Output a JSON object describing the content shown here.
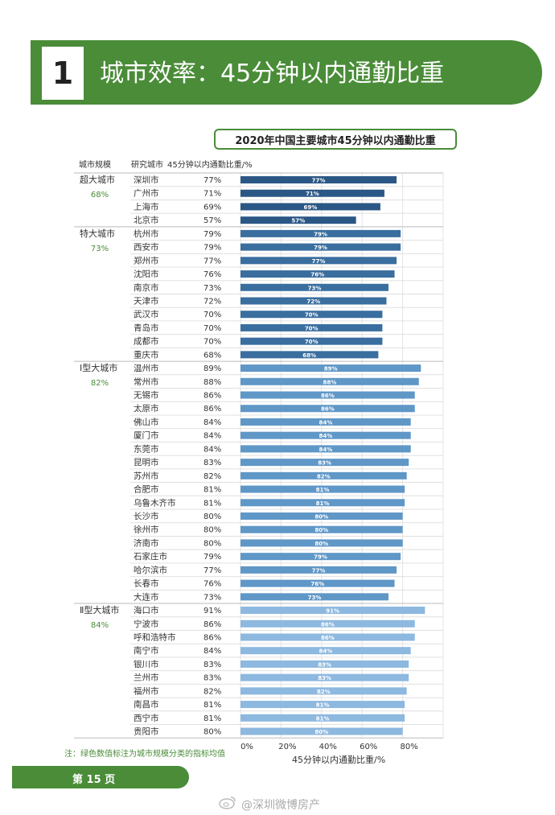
{
  "section": {
    "number": "1",
    "title": "城市效率：45分钟以内通勤比重"
  },
  "chart_data": {
    "type": "bar",
    "orientation": "horizontal",
    "title": "2020年中国主要城市45分钟以内通勤比重",
    "headers": {
      "group": "城市规模",
      "city": "研究城市",
      "value": "45分钟以内通勤比重/%"
    },
    "xlabel": "45分钟以内通勤比重/%",
    "xlim": [
      0,
      100
    ],
    "xticks": [
      "0%",
      "20%",
      "40%",
      "60%",
      "80%"
    ],
    "grid": true,
    "groups": [
      {
        "name": "超大城市",
        "avg": "68%",
        "color": "#2b5785",
        "cities": [
          {
            "city": "深圳市",
            "value": 77,
            "label": "77%"
          },
          {
            "city": "广州市",
            "value": 71,
            "label": "71%"
          },
          {
            "city": "上海市",
            "value": 69,
            "label": "69%"
          },
          {
            "city": "北京市",
            "value": 57,
            "label": "57%"
          }
        ]
      },
      {
        "name": "特大城市",
        "avg": "73%",
        "color": "#3a6e9f",
        "cities": [
          {
            "city": "杭州市",
            "value": 79,
            "label": "79%"
          },
          {
            "city": "西安市",
            "value": 79,
            "label": "79%"
          },
          {
            "city": "郑州市",
            "value": 77,
            "label": "77%"
          },
          {
            "city": "沈阳市",
            "value": 76,
            "label": "76%"
          },
          {
            "city": "南京市",
            "value": 73,
            "label": "73%"
          },
          {
            "city": "天津市",
            "value": 72,
            "label": "72%"
          },
          {
            "city": "武汉市",
            "value": 70,
            "label": "70%"
          },
          {
            "city": "青岛市",
            "value": 70,
            "label": "70%"
          },
          {
            "city": "成都市",
            "value": 70,
            "label": "70%"
          },
          {
            "city": "重庆市",
            "value": 68,
            "label": "68%"
          }
        ]
      },
      {
        "name": "Ⅰ型大城市",
        "avg": "82%",
        "color": "#5f97c7",
        "cities": [
          {
            "city": "温州市",
            "value": 89,
            "label": "89%"
          },
          {
            "city": "常州市",
            "value": 88,
            "label": "88%"
          },
          {
            "city": "无锡市",
            "value": 86,
            "label": "86%"
          },
          {
            "city": "太原市",
            "value": 86,
            "label": "86%"
          },
          {
            "city": "佛山市",
            "value": 84,
            "label": "84%"
          },
          {
            "city": "厦门市",
            "value": 84,
            "label": "84%"
          },
          {
            "city": "东莞市",
            "value": 84,
            "label": "84%"
          },
          {
            "city": "昆明市",
            "value": 83,
            "label": "83%"
          },
          {
            "city": "苏州市",
            "value": 82,
            "label": "82%"
          },
          {
            "city": "合肥市",
            "value": 81,
            "label": "81%"
          },
          {
            "city": "乌鲁木齐市",
            "value": 81,
            "label": "81%"
          },
          {
            "city": "长沙市",
            "value": 80,
            "label": "80%"
          },
          {
            "city": "徐州市",
            "value": 80,
            "label": "80%"
          },
          {
            "city": "济南市",
            "value": 80,
            "label": "80%"
          },
          {
            "city": "石家庄市",
            "value": 79,
            "label": "79%"
          },
          {
            "city": "哈尔滨市",
            "value": 77,
            "label": "77%"
          },
          {
            "city": "长春市",
            "value": 76,
            "label": "76%"
          },
          {
            "city": "大连市",
            "value": 73,
            "label": "73%"
          }
        ]
      },
      {
        "name": "Ⅱ型大城市",
        "avg": "84%",
        "color": "#8db8df",
        "cities": [
          {
            "city": "海口市",
            "value": 91,
            "label": "91%"
          },
          {
            "city": "宁波市",
            "value": 86,
            "label": "86%"
          },
          {
            "city": "呼和浩特市",
            "value": 86,
            "label": "86%"
          },
          {
            "city": "南宁市",
            "value": 84,
            "label": "84%"
          },
          {
            "city": "银川市",
            "value": 83,
            "label": "83%"
          },
          {
            "city": "兰州市",
            "value": 83,
            "label": "83%"
          },
          {
            "city": "福州市",
            "value": 82,
            "label": "82%"
          },
          {
            "city": "南昌市",
            "value": 81,
            "label": "81%"
          },
          {
            "city": "西宁市",
            "value": 81,
            "label": "81%"
          },
          {
            "city": "贵阳市",
            "value": 80,
            "label": "80%"
          }
        ]
      }
    ]
  },
  "footnote": "注：绿色数值标注为城市规模分类的指标均值",
  "page": "第 15 页",
  "watermark": "@深圳微博房产",
  "colors": {
    "green": "#4a8c38",
    "avg_text": "#4a8c38"
  }
}
